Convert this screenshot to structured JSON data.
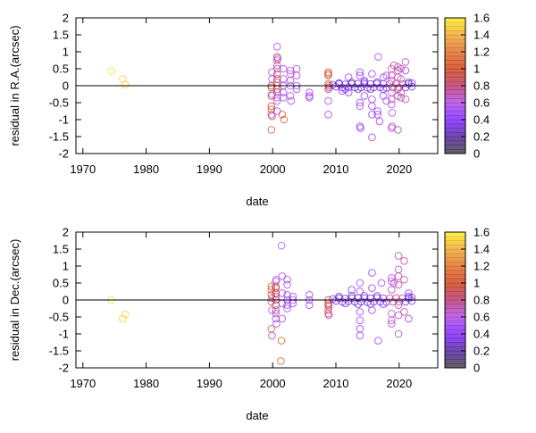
{
  "chart_data": [
    {
      "type": "scatter",
      "xlabel": "date",
      "ylabel": "residual in R.A.(arcsec)",
      "xlim": [
        1968.9,
        2026.1
      ],
      "ylim": [
        -2,
        2
      ],
      "xticks": [
        "1970",
        "1980",
        "1990",
        "2000",
        "2010",
        "2020"
      ],
      "yticks": [
        "2",
        "1.5",
        "1",
        "0.5",
        "0",
        "-0.5",
        "-1",
        "-1.5",
        "-2"
      ],
      "zero_line": true,
      "grid": false,
      "marker": "open-circle",
      "colorbar": {
        "range": [
          0,
          1.6
        ],
        "ticks": [
          "1.6",
          "1.4",
          "1.2",
          "1",
          "0.8",
          "0.6",
          "0.4",
          "0.2",
          "0"
        ],
        "position": "right"
      },
      "points": [
        [
          1974.5,
          0.43,
          1.55
        ],
        [
          1976.3,
          0.2,
          1.5
        ],
        [
          1976.7,
          0.03,
          1.5
        ],
        [
          1999.8,
          -1.3,
          1.1
        ],
        [
          1999.8,
          -0.85,
          1.1
        ],
        [
          1999.8,
          -0.7,
          1.05
        ],
        [
          1999.8,
          -0.6,
          1.0
        ],
        [
          1999.8,
          -0.3,
          1.0
        ],
        [
          1999.8,
          -0.05,
          1.05
        ],
        [
          1999.8,
          0.0,
          0.9
        ],
        [
          1999.9,
          0.2,
          0.6
        ],
        [
          1999.9,
          0.4,
          0.55
        ],
        [
          1999.9,
          -0.9,
          0.55
        ],
        [
          1999.9,
          -0.25,
          0.6
        ],
        [
          2000.7,
          1.15,
          0.55
        ],
        [
          2000.7,
          0.85,
          1.0
        ],
        [
          2000.7,
          0.75,
          0.6
        ],
        [
          2000.7,
          0.6,
          0.9
        ],
        [
          2000.7,
          0.5,
          0.55
        ],
        [
          2000.7,
          0.35,
          0.9
        ],
        [
          2000.7,
          0.2,
          1.0
        ],
        [
          2000.7,
          0.1,
          0.7
        ],
        [
          2000.7,
          0.0,
          1.1
        ],
        [
          2000.7,
          -0.1,
          0.9
        ],
        [
          2000.7,
          -0.2,
          0.8
        ],
        [
          2000.7,
          -0.35,
          0.6
        ],
        [
          2000.7,
          -0.45,
          0.6
        ],
        [
          2000.7,
          -0.75,
          0.5
        ],
        [
          2000.8,
          0.8,
          0.6
        ],
        [
          2001.5,
          -0.85,
          1.1
        ],
        [
          2001.8,
          -1.0,
          1.05
        ],
        [
          2001.7,
          0.5,
          0.5
        ],
        [
          2001.7,
          0.2,
          0.55
        ],
        [
          2001.7,
          0.0,
          0.5
        ],
        [
          2001.7,
          -0.2,
          0.5
        ],
        [
          2001.7,
          -0.35,
          0.55
        ],
        [
          2002.8,
          0.45,
          0.6
        ],
        [
          2002.8,
          0.35,
          0.65
        ],
        [
          2002.8,
          0.15,
          0.65
        ],
        [
          2002.8,
          0.0,
          0.6
        ],
        [
          2002.8,
          -0.3,
          0.6
        ],
        [
          2002.9,
          -0.45,
          0.55
        ],
        [
          2003.8,
          0.5,
          0.5
        ],
        [
          2003.8,
          0.3,
          0.5
        ],
        [
          2003.8,
          0.0,
          0.5
        ],
        [
          2003.8,
          -0.1,
          0.5
        ],
        [
          2005.8,
          -0.2,
          0.5
        ],
        [
          2005.8,
          -0.3,
          0.5
        ],
        [
          2005.8,
          -0.35,
          0.5
        ],
        [
          2008.8,
          0.4,
          1.1
        ],
        [
          2008.8,
          0.35,
          1.0
        ],
        [
          2008.8,
          0.3,
          1.05
        ],
        [
          2008.8,
          0.05,
          1.0
        ],
        [
          2008.9,
          0.0,
          1.05
        ],
        [
          2008.9,
          -0.05,
          0.95
        ],
        [
          2008.8,
          -0.45,
          0.55
        ],
        [
          2008.8,
          -0.85,
          0.5
        ],
        [
          2008.8,
          -0.1,
          0.5
        ],
        [
          2009.5,
          0.03,
          0.35
        ],
        [
          2010,
          -0.03,
          0.35
        ],
        [
          2010.5,
          0.05,
          0.35
        ],
        [
          2011,
          -0.05,
          0.35
        ],
        [
          2011.5,
          0.04,
          0.35
        ],
        [
          2012,
          -0.04,
          0.35
        ],
        [
          2012.5,
          0.05,
          0.3
        ],
        [
          2013,
          -0.05,
          0.3
        ],
        [
          2013.5,
          0.06,
          0.3
        ],
        [
          2014,
          -0.05,
          0.3
        ],
        [
          2014.5,
          0.05,
          0.35
        ],
        [
          2015,
          -0.06,
          0.35
        ],
        [
          2015.5,
          0.05,
          0.35
        ],
        [
          2016,
          -0.05,
          0.35
        ],
        [
          2016.5,
          0.06,
          0.35
        ],
        [
          2017,
          -0.05,
          0.4
        ],
        [
          2017.5,
          0.05,
          0.4
        ],
        [
          2018,
          -0.06,
          0.4
        ],
        [
          2018.5,
          0.05,
          0.7
        ],
        [
          2019,
          -0.05,
          0.75
        ],
        [
          2019.5,
          0.06,
          0.75
        ],
        [
          2020,
          -0.05,
          0.75
        ],
        [
          2020.5,
          0.05,
          0.7
        ],
        [
          2021,
          -0.05,
          0.35
        ],
        [
          2021.5,
          0.05,
          0.35
        ],
        [
          2022,
          -0.03,
          0.35
        ],
        [
          2010.5,
          0.08,
          0.35
        ],
        [
          2011.5,
          -0.1,
          0.35
        ],
        [
          2012.5,
          0.1,
          0.3
        ],
        [
          2013.5,
          -0.1,
          0.3
        ],
        [
          2014.5,
          0.1,
          0.35
        ],
        [
          2015.5,
          -0.1,
          0.35
        ],
        [
          2016.5,
          0.1,
          0.35
        ],
        [
          2017.5,
          -0.1,
          0.4
        ],
        [
          2021.5,
          0.1,
          0.35
        ],
        [
          2022,
          0.08,
          0.35
        ],
        [
          2011,
          -0.15,
          0.45
        ],
        [
          2012,
          0.25,
          0.45
        ],
        [
          2012,
          -0.2,
          0.45
        ],
        [
          2013.8,
          0.4,
          0.5
        ],
        [
          2013.8,
          0.3,
          0.5
        ],
        [
          2013.8,
          -0.5,
          0.5
        ],
        [
          2013.8,
          -0.6,
          0.5
        ],
        [
          2013.8,
          -1.2,
          0.45
        ],
        [
          2013.9,
          -1.25,
          0.45
        ],
        [
          2015.7,
          0.35,
          0.5
        ],
        [
          2015.7,
          -0.4,
          0.5
        ],
        [
          2015.7,
          -0.6,
          0.5
        ],
        [
          2015.7,
          -0.85,
          0.5
        ],
        [
          2015.7,
          -1.52,
          0.5
        ],
        [
          2016.7,
          0.85,
          0.55
        ],
        [
          2016.6,
          -0.75,
          0.5
        ],
        [
          2016.6,
          -0.85,
          0.5
        ],
        [
          2016.9,
          -1.05,
          0.5
        ],
        [
          2014.5,
          0.15,
          0.5
        ],
        [
          2014.5,
          -0.3,
          0.5
        ],
        [
          2017.5,
          0.25,
          0.5
        ],
        [
          2017.5,
          -0.3,
          0.5
        ],
        [
          2018,
          0.3,
          0.55
        ],
        [
          2018,
          -0.45,
          0.55
        ],
        [
          2018.8,
          0.5,
          0.7
        ],
        [
          2018.8,
          0.3,
          0.7
        ],
        [
          2018.8,
          0.15,
          0.65
        ],
        [
          2018.8,
          -0.2,
          0.6
        ],
        [
          2018.8,
          -0.4,
          0.6
        ],
        [
          2018.8,
          -0.55,
          0.6
        ],
        [
          2018.9,
          -0.8,
          0.6
        ],
        [
          2018.8,
          -1.25,
          0.65
        ],
        [
          2018.9,
          -1.2,
          0.55
        ],
        [
          2019.8,
          0.55,
          0.7
        ],
        [
          2019.8,
          0.45,
          0.7
        ],
        [
          2019.8,
          0.25,
          0.7
        ],
        [
          2019.8,
          -0.1,
          0.7
        ],
        [
          2019.8,
          -0.3,
          0.7
        ],
        [
          2019.8,
          -1.3,
          0.7
        ],
        [
          2020.3,
          0.5,
          0.7
        ],
        [
          2020.3,
          0.2,
          0.7
        ],
        [
          2020.3,
          -0.2,
          0.7
        ],
        [
          2020.3,
          -0.35,
          0.7
        ],
        [
          2021,
          0.7,
          0.7
        ],
        [
          2021,
          0.45,
          0.5
        ],
        [
          2021,
          -0.4,
          0.7
        ],
        [
          2019.2,
          0.6,
          0.7
        ]
      ]
    },
    {
      "type": "scatter",
      "xlabel": "date",
      "ylabel": "residual in Dec.(arcsec)",
      "xlim": [
        1968.9,
        2026.1
      ],
      "ylim": [
        -2,
        2
      ],
      "xticks": [
        "1970",
        "1980",
        "1990",
        "2000",
        "2010",
        "2020"
      ],
      "yticks": [
        "2",
        "1.5",
        "1",
        "0.5",
        "0",
        "-0.5",
        "-1",
        "-1.5",
        "-2"
      ],
      "zero_line": true,
      "grid": false,
      "marker": "open-circle",
      "colorbar": {
        "range": [
          0,
          1.6
        ],
        "ticks": [
          "1.6",
          "1.4",
          "1.2",
          "1",
          "0.8",
          "0.6",
          "0.4",
          "0.2",
          "0"
        ],
        "position": "right"
      },
      "points": [
        [
          1974.5,
          0.0,
          1.55
        ],
        [
          1976.3,
          -0.55,
          1.5
        ],
        [
          1976.7,
          -0.42,
          1.5
        ],
        [
          1999.8,
          0.4,
          1.05
        ],
        [
          1999.8,
          0.3,
          1.1
        ],
        [
          1999.8,
          0.15,
          1.0
        ],
        [
          1999.8,
          -0.05,
          1.05
        ],
        [
          1999.8,
          -0.85,
          1.1
        ],
        [
          1999.9,
          -1.05,
          0.55
        ],
        [
          1999.9,
          -0.3,
          0.6
        ],
        [
          1999.9,
          0.05,
          0.6
        ],
        [
          2000.5,
          0.55,
          0.55
        ],
        [
          2000.5,
          0.4,
          0.9
        ],
        [
          2000.5,
          0.35,
          0.85
        ],
        [
          2000.5,
          0.2,
          0.9
        ],
        [
          2000.5,
          0.1,
          0.85
        ],
        [
          2000.5,
          0.0,
          0.8
        ],
        [
          2000.5,
          -0.15,
          0.85
        ],
        [
          2000.5,
          -0.3,
          0.8
        ],
        [
          2000.5,
          -0.4,
          0.6
        ],
        [
          2000.5,
          -0.55,
          0.55
        ],
        [
          2000.6,
          -0.7,
          0.55
        ],
        [
          2000.6,
          0.6,
          0.6
        ],
        [
          2001.4,
          1.6,
          0.6
        ],
        [
          2001.4,
          -1.2,
          1.1
        ],
        [
          2001.3,
          -1.8,
          1.1
        ],
        [
          2001.5,
          0.7,
          0.55
        ],
        [
          2001.5,
          0.2,
          0.5
        ],
        [
          2001.5,
          -0.1,
          0.5
        ],
        [
          2001.5,
          -0.55,
          0.55
        ],
        [
          2002.3,
          0.6,
          0.55
        ],
        [
          2002.3,
          0.45,
          0.55
        ],
        [
          2002.3,
          0.15,
          0.5
        ],
        [
          2002.3,
          0.0,
          0.5
        ],
        [
          2002.3,
          -0.15,
          0.55
        ],
        [
          2002.3,
          -0.25,
          0.5
        ],
        [
          2003.2,
          0.1,
          0.5
        ],
        [
          2003.2,
          0.0,
          0.5
        ],
        [
          2003.2,
          -0.1,
          0.5
        ],
        [
          2005.8,
          0.15,
          0.5
        ],
        [
          2005.8,
          0.0,
          0.5
        ],
        [
          2005.8,
          -0.15,
          0.5
        ],
        [
          2008.8,
          0.0,
          1.0
        ],
        [
          2008.8,
          -0.1,
          1.05
        ],
        [
          2008.8,
          -0.15,
          1.0
        ],
        [
          2008.8,
          -0.3,
          1.05
        ],
        [
          2008.8,
          -0.4,
          1.0
        ],
        [
          2008.9,
          -0.2,
          0.6
        ],
        [
          2008.9,
          -0.45,
          0.55
        ],
        [
          2009.5,
          0.03,
          0.35
        ],
        [
          2010,
          -0.03,
          0.35
        ],
        [
          2010.5,
          0.05,
          0.35
        ],
        [
          2011,
          -0.05,
          0.35
        ],
        [
          2011.5,
          0.04,
          0.35
        ],
        [
          2012,
          -0.04,
          0.35
        ],
        [
          2012.5,
          0.05,
          0.3
        ],
        [
          2013,
          -0.05,
          0.3
        ],
        [
          2013.5,
          0.06,
          0.3
        ],
        [
          2014,
          -0.05,
          0.3
        ],
        [
          2014.5,
          0.05,
          0.35
        ],
        [
          2015,
          -0.06,
          0.35
        ],
        [
          2015.5,
          0.05,
          0.35
        ],
        [
          2016,
          -0.05,
          0.35
        ],
        [
          2016.5,
          0.06,
          0.35
        ],
        [
          2017,
          -0.05,
          0.4
        ],
        [
          2017.5,
          0.05,
          0.4
        ],
        [
          2018,
          -0.06,
          0.4
        ],
        [
          2018.5,
          0.05,
          0.7
        ],
        [
          2019,
          -0.05,
          0.75
        ],
        [
          2019.5,
          0.06,
          0.75
        ],
        [
          2020,
          -0.05,
          0.75
        ],
        [
          2020.5,
          0.05,
          0.7
        ],
        [
          2021,
          -0.05,
          0.35
        ],
        [
          2021.5,
          0.05,
          0.35
        ],
        [
          2022,
          -0.03,
          0.35
        ],
        [
          2010.5,
          0.1,
          0.35
        ],
        [
          2011.5,
          -0.1,
          0.35
        ],
        [
          2012.5,
          0.12,
          0.3
        ],
        [
          2013.5,
          -0.12,
          0.3
        ],
        [
          2014.5,
          0.12,
          0.35
        ],
        [
          2015.5,
          -0.12,
          0.35
        ],
        [
          2016.5,
          0.12,
          0.35
        ],
        [
          2017.5,
          -0.12,
          0.4
        ],
        [
          2021.5,
          0.1,
          0.35
        ],
        [
          2022,
          0.08,
          0.35
        ],
        [
          2012.5,
          0.3,
          0.45
        ],
        [
          2013.8,
          0.5,
          0.5
        ],
        [
          2013.8,
          0.25,
          0.5
        ],
        [
          2013.8,
          -0.35,
          0.5
        ],
        [
          2013.8,
          -0.6,
          0.5
        ],
        [
          2013.8,
          -0.85,
          0.5
        ],
        [
          2013.8,
          -1.05,
          0.5
        ],
        [
          2015.7,
          0.8,
          0.5
        ],
        [
          2015.7,
          0.35,
          0.5
        ],
        [
          2015.7,
          -0.3,
          0.5
        ],
        [
          2016.7,
          -1.2,
          0.5
        ],
        [
          2017.2,
          0.5,
          0.5
        ],
        [
          2018.8,
          0.65,
          0.6
        ],
        [
          2018.8,
          0.55,
          0.6
        ],
        [
          2018.8,
          0.3,
          0.7
        ],
        [
          2018.8,
          -0.4,
          0.6
        ],
        [
          2018.8,
          -0.6,
          0.6
        ],
        [
          2018.8,
          -0.7,
          0.7
        ],
        [
          2019.2,
          0.5,
          0.7
        ],
        [
          2019.9,
          1.3,
          0.7
        ],
        [
          2019.9,
          0.9,
          0.7
        ],
        [
          2019.9,
          0.7,
          0.7
        ],
        [
          2019.9,
          0.45,
          0.7
        ],
        [
          2019.9,
          -0.15,
          0.7
        ],
        [
          2019.9,
          -0.45,
          0.7
        ],
        [
          2019.9,
          -1.0,
          0.7
        ],
        [
          2020.8,
          1.15,
          0.7
        ],
        [
          2020.8,
          0.6,
          0.7
        ],
        [
          2020.8,
          -0.35,
          0.7
        ],
        [
          2021.5,
          0.2,
          0.5
        ],
        [
          2021.5,
          -0.55,
          0.5
        ]
      ]
    }
  ],
  "colormap": [
    [
      0.0,
      "#3a3a3a"
    ],
    [
      0.2,
      "#4a1a9a"
    ],
    [
      0.4,
      "#7a1cff"
    ],
    [
      0.6,
      "#b040e8"
    ],
    [
      0.8,
      "#b8306a"
    ],
    [
      1.0,
      "#cc3a10"
    ],
    [
      1.2,
      "#e06a20"
    ],
    [
      1.4,
      "#f0a428"
    ],
    [
      1.6,
      "#ffee10"
    ]
  ]
}
